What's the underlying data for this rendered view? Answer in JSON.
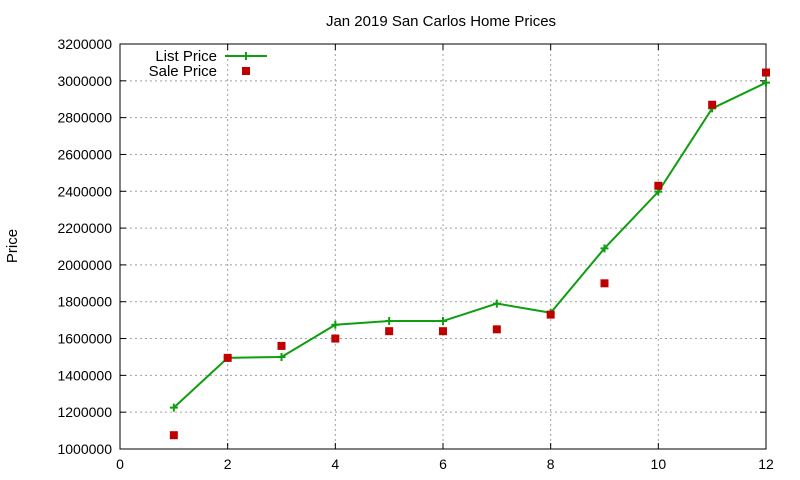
{
  "chart_data": {
    "type": "line",
    "title": "Jan 2019 San Carlos Home Prices",
    "xlabel": "",
    "ylabel": "Price",
    "xlim": [
      0,
      12
    ],
    "ylim": [
      1000000,
      3200000
    ],
    "xticks": [
      0,
      2,
      4,
      6,
      8,
      10,
      12
    ],
    "yticks": [
      1000000,
      1200000,
      1400000,
      1600000,
      1800000,
      2000000,
      2200000,
      2400000,
      2600000,
      2800000,
      3000000,
      3200000
    ],
    "grid": true,
    "legend_position": "top-left",
    "series": [
      {
        "name": "List Price",
        "style": "line-with-plus-markers",
        "color": "#0f9e0f",
        "x": [
          1,
          2,
          3,
          4,
          5,
          6,
          7,
          8,
          9,
          10,
          11,
          12
        ],
        "y": [
          1225000,
          1495000,
          1500000,
          1675000,
          1695000,
          1695000,
          1790000,
          1740000,
          2090000,
          2398000,
          2850000,
          2990000
        ]
      },
      {
        "name": "Sale Price",
        "style": "square-markers",
        "color": "#c00000",
        "x": [
          1,
          2,
          3,
          4,
          5,
          6,
          7,
          8,
          9,
          10,
          11,
          12
        ],
        "y": [
          1075000,
          1495000,
          1560000,
          1600000,
          1640000,
          1640000,
          1650000,
          1730000,
          1900000,
          2430000,
          2870000,
          3045000
        ]
      }
    ]
  }
}
